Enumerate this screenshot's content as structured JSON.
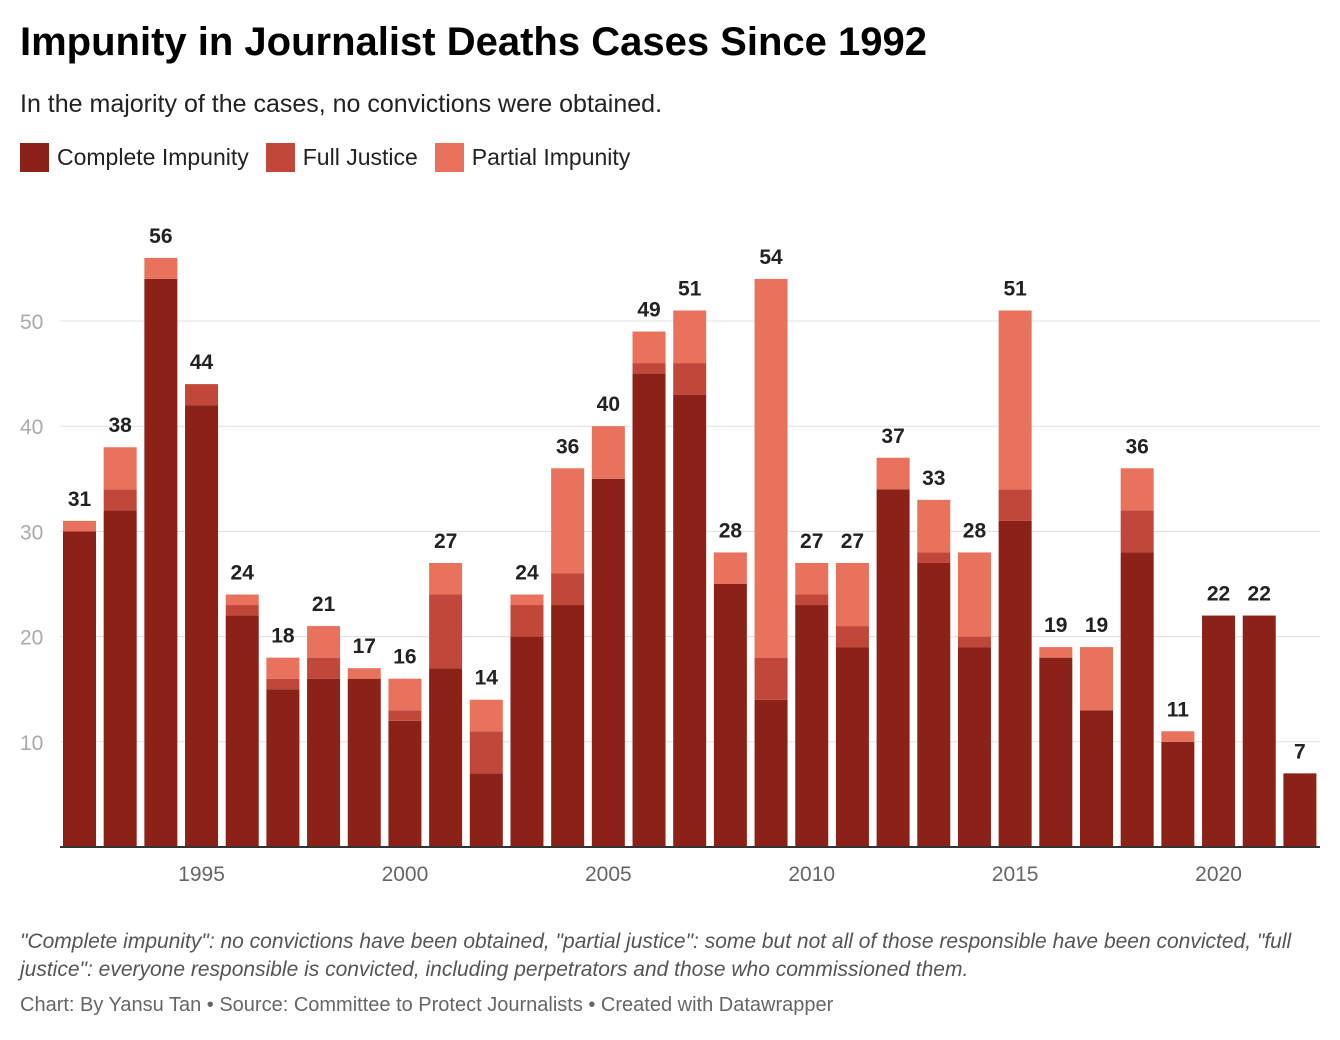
{
  "header": {
    "title": "Impunity in Journalist Deaths Cases Since 1992",
    "subtitle": "In the majority of the cases, no convictions were obtained."
  },
  "footer": {
    "notes": "\"Complete impunity\": no convictions have been obtained, \"partial justice\": some but not all of those responsible have been convicted, \"full justice\": everyone responsible is convicted, including perpetrators and those who commissioned them.",
    "credit": "Chart: By Yansu Tan • Source: Committee to Protect Journalists • Created with Datawrapper"
  },
  "chart_data": {
    "type": "bar",
    "stacked": true,
    "title": "Impunity in Journalist Deaths Cases Since 1992",
    "subtitle": "In the majority of the cases, no convictions were obtained.",
    "legend_position": "top-left",
    "grid": true,
    "ylim": [
      0,
      57
    ],
    "y_ticks": [
      10,
      20,
      30,
      40,
      50
    ],
    "x_tick_labels": [
      "1995",
      "2000",
      "2005",
      "2010",
      "2015",
      "2020"
    ],
    "categories": [
      1992,
      1993,
      1994,
      1995,
      1996,
      1997,
      1998,
      1999,
      2000,
      2001,
      2002,
      2003,
      2004,
      2005,
      2006,
      2007,
      2008,
      2009,
      2010,
      2011,
      2012,
      2013,
      2014,
      2015,
      2016,
      2017,
      2018,
      2019,
      2020,
      2021,
      2022
    ],
    "series": [
      {
        "name": "Complete Impunity",
        "color": "#8c2217",
        "values": [
          30,
          32,
          54,
          42,
          22,
          15,
          16,
          16,
          12,
          17,
          7,
          20,
          23,
          35,
          45,
          43,
          25,
          14,
          23,
          19,
          34,
          27,
          19,
          31,
          18,
          13,
          28,
          10,
          22,
          22,
          7
        ]
      },
      {
        "name": "Full Justice",
        "color": "#c1473a",
        "values": [
          0,
          2,
          0,
          2,
          1,
          1,
          2,
          0,
          1,
          7,
          4,
          3,
          3,
          0,
          1,
          3,
          0,
          4,
          1,
          2,
          0,
          1,
          1,
          3,
          0,
          0,
          4,
          0,
          0,
          0,
          0
        ]
      },
      {
        "name": "Partial Impunity",
        "color": "#e8725c",
        "values": [
          1,
          4,
          2,
          0,
          1,
          2,
          3,
          1,
          3,
          3,
          3,
          1,
          10,
          5,
          3,
          5,
          3,
          36,
          3,
          6,
          3,
          5,
          8,
          17,
          1,
          6,
          4,
          1,
          0,
          0,
          0
        ]
      }
    ],
    "totals": [
      31,
      38,
      56,
      44,
      24,
      18,
      21,
      17,
      16,
      27,
      14,
      24,
      36,
      40,
      49,
      51,
      28,
      54,
      27,
      27,
      37,
      33,
      28,
      51,
      19,
      19,
      36,
      11,
      22,
      22,
      7
    ]
  }
}
